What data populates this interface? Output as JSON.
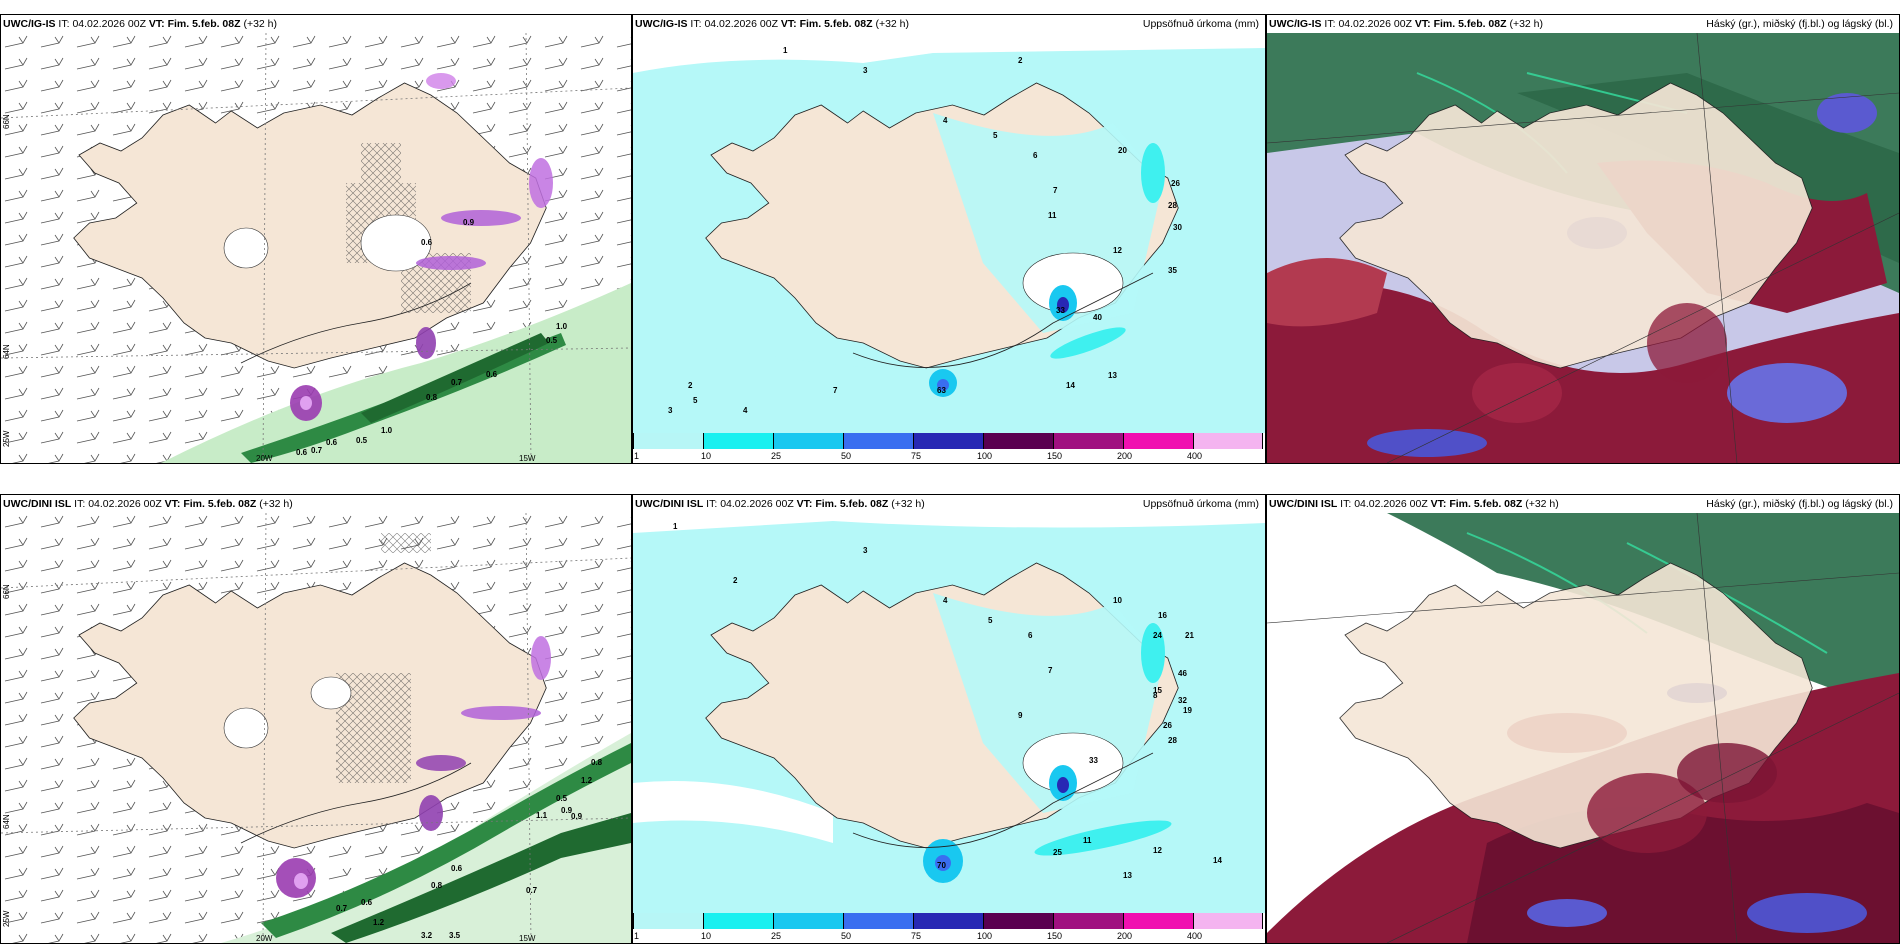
{
  "panels": {
    "top_left": {
      "model": "UWC/IG-IS",
      "it_label": "IT:",
      "it": "04.02.2026 00Z",
      "vt_label": "VT:",
      "vt": "Fim. 5.feb. 08Z",
      "lead": "(+32 h)",
      "right": ""
    },
    "top_mid": {
      "model": "UWC/IG-IS",
      "it_label": "IT:",
      "it": "04.02.2026 00Z",
      "vt_label": "VT:",
      "vt": "Fim. 5.feb. 08Z",
      "lead": "(+32 h)",
      "right": "Uppsöfnuð úrkoma (mm)"
    },
    "top_right": {
      "model": "UWC/IG-IS",
      "it_label": "IT:",
      "it": "04.02.2026 00Z",
      "vt_label": "VT:",
      "vt": "Fim. 5.feb. 08Z",
      "lead": "(+32 h)",
      "right": "Háský (gr.), miðský (fj.bl.) og lágský (bl.)"
    },
    "bot_left": {
      "model": "UWC/DINI ISL",
      "it_label": "IT:",
      "it": "04.02.2026 00Z",
      "vt_label": "VT:",
      "vt": "Fim. 5.feb. 08Z",
      "lead": "(+32 h)",
      "right": ""
    },
    "bot_mid": {
      "model": "UWC/DINI ISL",
      "it_label": "IT:",
      "it": "04.02.2026 00Z",
      "vt_label": "VT:",
      "vt": "Fim. 5.feb. 08Z",
      "lead": "(+32 h)",
      "right": "Uppsöfnuð úrkoma (mm)"
    },
    "bot_right": {
      "model": "UWC/DINI ISL",
      "it_label": "IT:",
      "it": "04.02.2026 00Z",
      "vt_label": "VT:",
      "vt": "Fim. 5.feb. 08Z",
      "lead": "(+32 h)",
      "right": "Háský (gr.), miðský (fj.bl.) og lágský (bl.)"
    }
  },
  "axes": {
    "lat_66": "66N",
    "lat_64": "64N",
    "lat_65": "65N",
    "lon_25": "25W",
    "lon_20": "20W",
    "lon_15": "15W"
  },
  "colorbar": {
    "ticks": [
      "1",
      "10",
      "25",
      "50",
      "75",
      "100",
      "150",
      "200",
      "400"
    ],
    "colors": [
      "#b7f6f6",
      "#19f0f0",
      "#19c8f0",
      "#3a6ef0",
      "#2828b4",
      "#5a0050",
      "#a01080",
      "#f010b0",
      "#f4b4f0"
    ]
  },
  "colors": {
    "land": "#f5e6d6",
    "precip_light": "#b5f8f8",
    "precip_mid": "#3ff0ef",
    "snow_green": "#1e8a3a",
    "cloud_red": "#8c1a3a",
    "cloud_blue": "#5050c8",
    "cloud_green": "#3c7a5a"
  },
  "precip_values_top": [
    "1",
    "2",
    "3",
    "4",
    "5",
    "6",
    "7",
    "11",
    "12",
    "13",
    "14",
    "20",
    "26",
    "28",
    "30",
    "33",
    "35",
    "40",
    "63",
    "7",
    "4",
    "5",
    "3",
    "2"
  ],
  "precip_values_bot": [
    "1",
    "2",
    "3",
    "4",
    "5",
    "6",
    "7",
    "8",
    "9",
    "10",
    "11",
    "12",
    "13",
    "14",
    "15",
    "16",
    "19",
    "21",
    "24",
    "25",
    "26",
    "28",
    "32",
    "33",
    "46",
    "70"
  ],
  "snow_values_top": [
    "1.0",
    "0.6",
    "0.7",
    "0.8",
    "1.0",
    "0.5",
    "0.6",
    "0.7",
    "0.6",
    "0.5",
    "0.9",
    "0.6"
  ],
  "snow_values_bot": [
    "0.8",
    "1.2",
    "0.5",
    "0.9",
    "1.1",
    "0.6",
    "0.9",
    "0.7",
    "0.6",
    "0.8",
    "1.2",
    "3.2",
    "3.5",
    "0.7"
  ]
}
